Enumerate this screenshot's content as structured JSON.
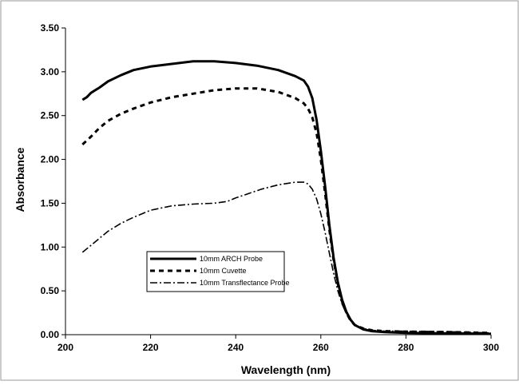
{
  "chart_data": {
    "type": "line",
    "xlabel": "Wavelength (nm)",
    "ylabel": "Absorbance",
    "xlim": [
      200,
      300
    ],
    "ylim": [
      0,
      3.5
    ],
    "x_ticks": [
      200,
      220,
      240,
      260,
      280,
      300
    ],
    "y_ticks": [
      0,
      0.5,
      1.0,
      1.5,
      2.0,
      2.5,
      3.0,
      3.5
    ],
    "x_tick_labels": [
      "200",
      "220",
      "240",
      "260",
      "280",
      "300"
    ],
    "y_tick_labels": [
      "0.00",
      "0.50",
      "1.00",
      "1.50",
      "2.00",
      "2.50",
      "3.00",
      "3.50"
    ],
    "grid": false,
    "legend_position": "center-left",
    "series": [
      {
        "name": "10mm ARCH Probe",
        "style": "solid",
        "points": [
          [
            204,
            2.68
          ],
          [
            205,
            2.71
          ],
          [
            206,
            2.76
          ],
          [
            208,
            2.82
          ],
          [
            210,
            2.89
          ],
          [
            213,
            2.96
          ],
          [
            216,
            3.02
          ],
          [
            220,
            3.06
          ],
          [
            225,
            3.09
          ],
          [
            230,
            3.12
          ],
          [
            235,
            3.12
          ],
          [
            240,
            3.1
          ],
          [
            245,
            3.07
          ],
          [
            250,
            3.02
          ],
          [
            254,
            2.95
          ],
          [
            256,
            2.9
          ],
          [
            257,
            2.83
          ],
          [
            258,
            2.7
          ],
          [
            259,
            2.45
          ],
          [
            260,
            2.1
          ],
          [
            261,
            1.7
          ],
          [
            262,
            1.25
          ],
          [
            263,
            0.88
          ],
          [
            264,
            0.6
          ],
          [
            265,
            0.4
          ],
          [
            266,
            0.26
          ],
          [
            267,
            0.17
          ],
          [
            268,
            0.11
          ],
          [
            270,
            0.06
          ],
          [
            272,
            0.04
          ],
          [
            275,
            0.03
          ],
          [
            280,
            0.02
          ],
          [
            290,
            0.015
          ],
          [
            300,
            0.01
          ]
        ]
      },
      {
        "name": "10mm Cuvette",
        "style": "dash",
        "points": [
          [
            204,
            2.17
          ],
          [
            206,
            2.26
          ],
          [
            208,
            2.36
          ],
          [
            210,
            2.44
          ],
          [
            213,
            2.52
          ],
          [
            216,
            2.58
          ],
          [
            220,
            2.65
          ],
          [
            225,
            2.71
          ],
          [
            230,
            2.75
          ],
          [
            235,
            2.79
          ],
          [
            240,
            2.81
          ],
          [
            245,
            2.81
          ],
          [
            250,
            2.77
          ],
          [
            254,
            2.7
          ],
          [
            256,
            2.64
          ],
          [
            257,
            2.58
          ],
          [
            258,
            2.48
          ],
          [
            259,
            2.3
          ],
          [
            260,
            2.0
          ],
          [
            261,
            1.62
          ],
          [
            262,
            1.2
          ],
          [
            263,
            0.85
          ],
          [
            264,
            0.58
          ],
          [
            265,
            0.38
          ],
          [
            266,
            0.25
          ],
          [
            267,
            0.16
          ],
          [
            268,
            0.11
          ],
          [
            270,
            0.07
          ],
          [
            272,
            0.05
          ],
          [
            275,
            0.04
          ],
          [
            280,
            0.035
          ],
          [
            290,
            0.03
          ],
          [
            300,
            0.02
          ]
        ]
      },
      {
        "name": "10mm Transflectance Probe",
        "style": "dashdot",
        "points": [
          [
            204,
            0.94
          ],
          [
            206,
            1.02
          ],
          [
            208,
            1.1
          ],
          [
            210,
            1.18
          ],
          [
            213,
            1.27
          ],
          [
            216,
            1.34
          ],
          [
            220,
            1.42
          ],
          [
            225,
            1.47
          ],
          [
            230,
            1.49
          ],
          [
            235,
            1.5
          ],
          [
            238,
            1.52
          ],
          [
            240,
            1.56
          ],
          [
            243,
            1.61
          ],
          [
            246,
            1.66
          ],
          [
            250,
            1.71
          ],
          [
            254,
            1.74
          ],
          [
            256,
            1.74
          ],
          [
            257,
            1.72
          ],
          [
            258,
            1.66
          ],
          [
            259,
            1.55
          ],
          [
            260,
            1.38
          ],
          [
            261,
            1.17
          ],
          [
            262,
            0.93
          ],
          [
            263,
            0.7
          ],
          [
            264,
            0.5
          ],
          [
            265,
            0.35
          ],
          [
            266,
            0.24
          ],
          [
            267,
            0.16
          ],
          [
            268,
            0.11
          ],
          [
            270,
            0.07
          ],
          [
            272,
            0.05
          ],
          [
            275,
            0.04
          ],
          [
            280,
            0.04
          ],
          [
            290,
            0.035
          ],
          [
            300,
            0.02
          ]
        ]
      }
    ]
  }
}
